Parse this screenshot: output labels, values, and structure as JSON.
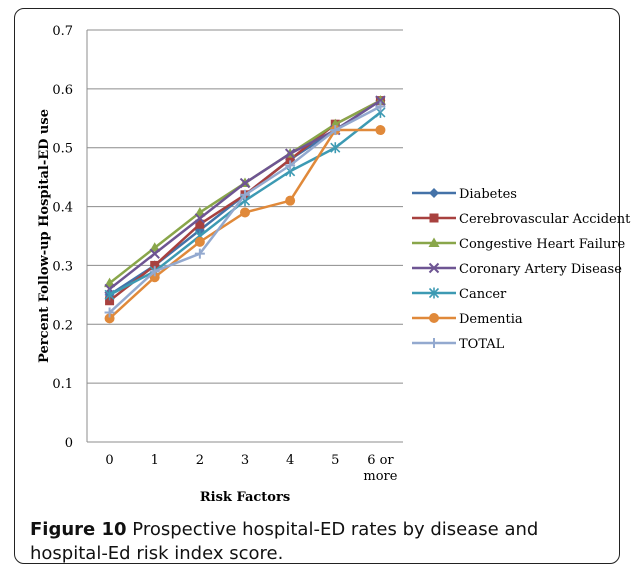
{
  "chart_data": {
    "type": "line",
    "categories": [
      "0",
      "1",
      "2",
      "3",
      "4",
      "5",
      "6 or more"
    ],
    "xlabel": "Risk Factors",
    "ylabel": "Percent Follow-up Hospital-ED use",
    "ylim": [
      0,
      0.7
    ],
    "yticks": [
      "0",
      "0.1",
      "0.2",
      "0.3",
      "0.4",
      "0.5",
      "0.6",
      "0.7"
    ],
    "grid": true,
    "legend_position": "right",
    "series": [
      {
        "name": "Diabetes",
        "values": [
          0.25,
          0.3,
          0.36,
          0.42,
          0.48,
          0.53,
          0.58
        ],
        "color": "#4472A8",
        "marker": "diamond"
      },
      {
        "name": "Cerebrovascular Accident",
        "values": [
          0.24,
          0.3,
          0.37,
          0.42,
          0.48,
          0.54,
          0.58
        ],
        "color": "#A8413F",
        "marker": "square"
      },
      {
        "name": "Congestive Heart Failure",
        "values": [
          0.27,
          0.33,
          0.39,
          0.44,
          0.49,
          0.54,
          0.58
        ],
        "color": "#89A64A",
        "marker": "triangle"
      },
      {
        "name": "Coronary Artery Disease",
        "values": [
          0.26,
          0.32,
          0.38,
          0.44,
          0.49,
          0.53,
          0.58
        ],
        "color": "#6E5593",
        "marker": "x"
      },
      {
        "name": "Cancer",
        "values": [
          0.25,
          0.29,
          0.35,
          0.41,
          0.46,
          0.5,
          0.56
        ],
        "color": "#3D9AB3",
        "marker": "star"
      },
      {
        "name": "Dementia",
        "values": [
          0.21,
          0.28,
          0.34,
          0.39,
          0.41,
          0.53,
          0.53
        ],
        "color": "#E0893A",
        "marker": "circle"
      },
      {
        "name": "TOTAL",
        "values": [
          0.22,
          0.29,
          0.32,
          0.42,
          0.47,
          0.53,
          0.57
        ],
        "color": "#93A9CF",
        "marker": "plus"
      }
    ]
  },
  "caption": {
    "label": "Figure 10",
    "text": " Prospective hospital-ED rates by disease and hospital-Ed risk index score."
  }
}
